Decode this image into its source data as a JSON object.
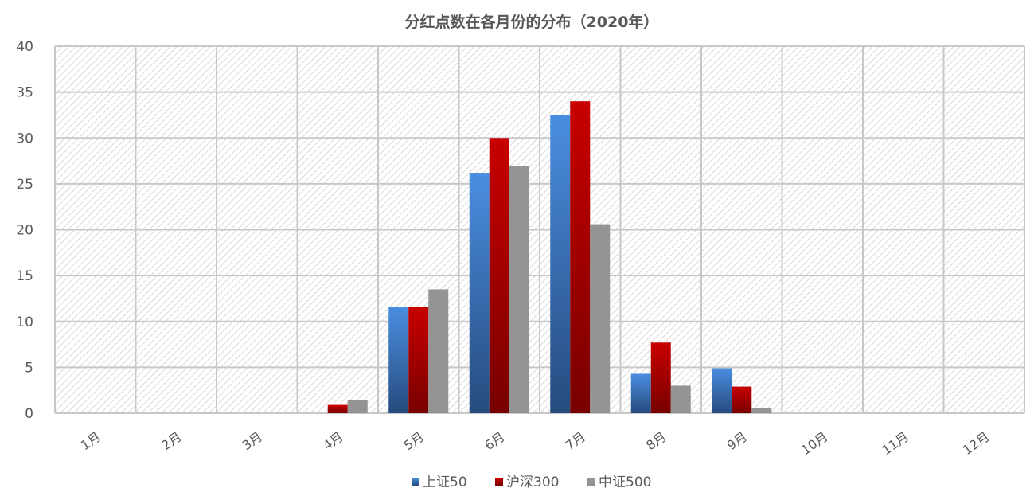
{
  "chart_data": {
    "type": "bar",
    "title": "分红点数在各月份的分布（2020年）",
    "xlabel": "",
    "ylabel": "",
    "categories": [
      "1月",
      "2月",
      "3月",
      "4月",
      "5月",
      "6月",
      "7月",
      "8月",
      "9月",
      "10月",
      "11月",
      "12月"
    ],
    "series": [
      {
        "name": "上证50",
        "color": "#4a8ee0",
        "values": [
          0,
          0,
          0,
          0,
          11.6,
          26.2,
          32.5,
          4.3,
          4.9,
          0,
          0,
          0
        ]
      },
      {
        "name": "沪深300",
        "color": "#c00000",
        "values": [
          0,
          0,
          0,
          0.9,
          11.6,
          30.0,
          34.0,
          7.7,
          2.9,
          0,
          0,
          0
        ]
      },
      {
        "name": "中证500",
        "color": "#949494",
        "values": [
          0,
          0,
          0,
          1.4,
          13.5,
          26.9,
          20.6,
          3.0,
          0.6,
          0,
          0,
          0
        ]
      }
    ],
    "ylim": [
      0,
      40
    ],
    "yticks": [
      0,
      5,
      10,
      15,
      20,
      25,
      30,
      35,
      40
    ],
    "grid": true,
    "legend": "bottom"
  }
}
